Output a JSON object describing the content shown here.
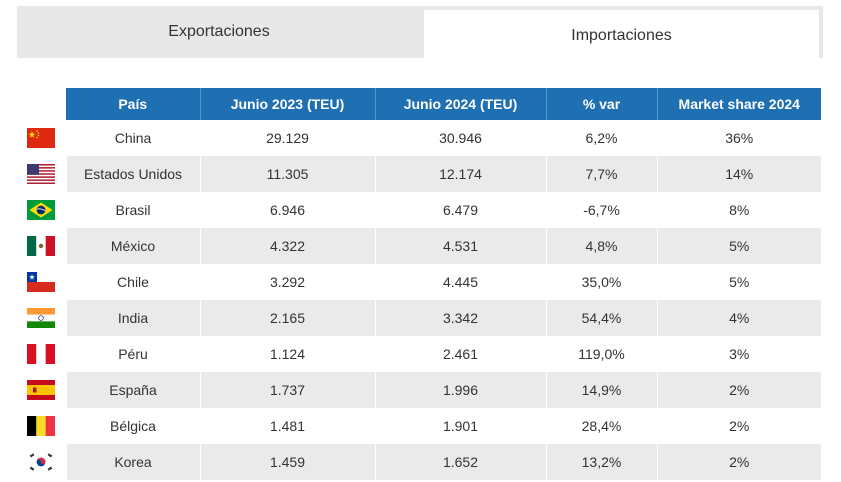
{
  "tabs": [
    {
      "label": "Exportaciones",
      "active": false
    },
    {
      "label": "Importaciones",
      "active": true
    }
  ],
  "table": {
    "headers": [
      "País",
      "Junio 2023 (TEU)",
      "Junio 2024 (TEU)",
      "% var",
      "Market share 2024"
    ],
    "header_color": "#1f6fb3",
    "rows": [
      {
        "flag": "china-flag-icon",
        "pais": "China",
        "j2023": "29.129",
        "j2024": "30.946",
        "var": "6,2%",
        "share": "36%"
      },
      {
        "flag": "usa-flag-icon",
        "pais": "Estados Unidos",
        "j2023": "11.305",
        "j2024": "12.174",
        "var": "7,7%",
        "share": "14%"
      },
      {
        "flag": "brazil-flag-icon",
        "pais": "Brasil",
        "j2023": "6.946",
        "j2024": "6.479",
        "var": "-6,7%",
        "share": "8%"
      },
      {
        "flag": "mexico-flag-icon",
        "pais": "México",
        "j2023": "4.322",
        "j2024": "4.531",
        "var": "4,8%",
        "share": "5%"
      },
      {
        "flag": "chile-flag-icon",
        "pais": "Chile",
        "j2023": "3.292",
        "j2024": "4.445",
        "var": "35,0%",
        "share": "5%"
      },
      {
        "flag": "india-flag-icon",
        "pais": "India",
        "j2023": "2.165",
        "j2024": "3.342",
        "var": "54,4%",
        "share": "4%"
      },
      {
        "flag": "peru-flag-icon",
        "pais": "Péru",
        "j2023": "1.124",
        "j2024": "2.461",
        "var": "119,0%",
        "share": "3%"
      },
      {
        "flag": "spain-flag-icon",
        "pais": "España",
        "j2023": "1.737",
        "j2024": "1.996",
        "var": "14,9%",
        "share": "2%"
      },
      {
        "flag": "belgium-flag-icon",
        "pais": "Bélgica",
        "j2023": "1.481",
        "j2024": "1.901",
        "var": "28,4%",
        "share": "2%"
      },
      {
        "flag": "korea-flag-icon",
        "pais": "Korea",
        "j2023": "1.459",
        "j2024": "1.652",
        "var": "13,2%",
        "share": "2%"
      }
    ]
  }
}
